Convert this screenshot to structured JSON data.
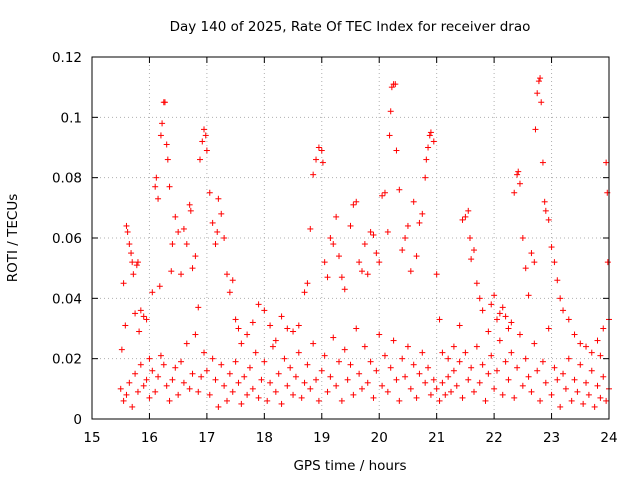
{
  "chart_data": {
    "type": "scatter",
    "title": "Day 140 of 2025, Rate Of TEC Index for receiver drao",
    "xlabel": "GPS time / hours",
    "ylabel": "ROTI / TECUs",
    "xlim": [
      15,
      24
    ],
    "ylim": [
      0,
      0.12
    ],
    "x_ticks": [
      "15",
      "16",
      "17",
      "18",
      "19",
      "20",
      "21",
      "22",
      "23",
      "24"
    ],
    "y_ticks": [
      "0",
      "0.02",
      "0.04",
      "0.06",
      "0.08",
      "0.1",
      "0.12"
    ],
    "grid": true,
    "marker": "plus",
    "series_color": "#ff0000",
    "points": [
      [
        15.5,
        0.01
      ],
      [
        15.52,
        0.023
      ],
      [
        15.55,
        0.045
      ],
      [
        15.58,
        0.031
      ],
      [
        15.6,
        0.064
      ],
      [
        15.62,
        0.062
      ],
      [
        15.65,
        0.058
      ],
      [
        15.68,
        0.055
      ],
      [
        15.7,
        0.052
      ],
      [
        15.72,
        0.048
      ],
      [
        15.75,
        0.035
      ],
      [
        15.78,
        0.051
      ],
      [
        15.8,
        0.052
      ],
      [
        15.82,
        0.029
      ],
      [
        15.85,
        0.036
      ],
      [
        15.9,
        0.034
      ],
      [
        15.95,
        0.033
      ],
      [
        16.0,
        0.02
      ],
      [
        16.05,
        0.042
      ],
      [
        16.1,
        0.077
      ],
      [
        16.12,
        0.08
      ],
      [
        16.15,
        0.073
      ],
      [
        16.18,
        0.044
      ],
      [
        16.2,
        0.094
      ],
      [
        16.22,
        0.098
      ],
      [
        16.25,
        0.105
      ],
      [
        16.27,
        0.105
      ],
      [
        16.3,
        0.091
      ],
      [
        16.32,
        0.086
      ],
      [
        16.35,
        0.077
      ],
      [
        16.38,
        0.049
      ],
      [
        16.4,
        0.058
      ],
      [
        16.45,
        0.067
      ],
      [
        16.5,
        0.062
      ],
      [
        16.55,
        0.048
      ],
      [
        16.6,
        0.063
      ],
      [
        16.65,
        0.058
      ],
      [
        16.7,
        0.071
      ],
      [
        16.72,
        0.069
      ],
      [
        16.75,
        0.05
      ],
      [
        16.8,
        0.054
      ],
      [
        16.85,
        0.037
      ],
      [
        16.88,
        0.086
      ],
      [
        16.92,
        0.092
      ],
      [
        16.95,
        0.096
      ],
      [
        16.98,
        0.094
      ],
      [
        17.0,
        0.089
      ],
      [
        17.05,
        0.075
      ],
      [
        17.1,
        0.065
      ],
      [
        17.15,
        0.058
      ],
      [
        17.18,
        0.062
      ],
      [
        17.2,
        0.073
      ],
      [
        17.25,
        0.068
      ],
      [
        17.3,
        0.06
      ],
      [
        17.35,
        0.048
      ],
      [
        17.4,
        0.042
      ],
      [
        17.45,
        0.046
      ],
      [
        17.5,
        0.033
      ],
      [
        17.55,
        0.03
      ],
      [
        17.6,
        0.025
      ],
      [
        17.7,
        0.028
      ],
      [
        17.8,
        0.032
      ],
      [
        17.9,
        0.038
      ],
      [
        18.0,
        0.036
      ],
      [
        18.1,
        0.031
      ],
      [
        18.2,
        0.026
      ],
      [
        18.3,
        0.034
      ],
      [
        18.4,
        0.03
      ],
      [
        18.5,
        0.029
      ],
      [
        18.6,
        0.031
      ],
      [
        18.7,
        0.042
      ],
      [
        18.75,
        0.045
      ],
      [
        18.8,
        0.063
      ],
      [
        18.85,
        0.081
      ],
      [
        18.9,
        0.086
      ],
      [
        18.95,
        0.09
      ],
      [
        19.0,
        0.089
      ],
      [
        19.02,
        0.085
      ],
      [
        19.05,
        0.052
      ],
      [
        19.1,
        0.047
      ],
      [
        19.15,
        0.06
      ],
      [
        19.2,
        0.058
      ],
      [
        19.25,
        0.067
      ],
      [
        19.3,
        0.054
      ],
      [
        19.35,
        0.047
      ],
      [
        19.4,
        0.043
      ],
      [
        19.5,
        0.064
      ],
      [
        19.55,
        0.071
      ],
      [
        19.6,
        0.072
      ],
      [
        19.65,
        0.052
      ],
      [
        19.7,
        0.049
      ],
      [
        19.75,
        0.058
      ],
      [
        19.8,
        0.048
      ],
      [
        19.85,
        0.062
      ],
      [
        19.9,
        0.061
      ],
      [
        19.95,
        0.055
      ],
      [
        20.0,
        0.052
      ],
      [
        20.05,
        0.074
      ],
      [
        20.1,
        0.075
      ],
      [
        20.15,
        0.062
      ],
      [
        20.18,
        0.094
      ],
      [
        20.2,
        0.102
      ],
      [
        20.22,
        0.11
      ],
      [
        20.25,
        0.111
      ],
      [
        20.28,
        0.111
      ],
      [
        20.3,
        0.089
      ],
      [
        20.35,
        0.076
      ],
      [
        20.4,
        0.056
      ],
      [
        20.45,
        0.06
      ],
      [
        20.5,
        0.064
      ],
      [
        20.55,
        0.049
      ],
      [
        20.6,
        0.072
      ],
      [
        20.65,
        0.054
      ],
      [
        20.7,
        0.065
      ],
      [
        20.75,
        0.068
      ],
      [
        20.8,
        0.08
      ],
      [
        20.82,
        0.086
      ],
      [
        20.85,
        0.09
      ],
      [
        20.88,
        0.094
      ],
      [
        20.9,
        0.095
      ],
      [
        20.95,
        0.092
      ],
      [
        21.0,
        0.048
      ],
      [
        21.05,
        0.033
      ],
      [
        21.1,
        0.022
      ],
      [
        21.2,
        0.02
      ],
      [
        21.3,
        0.024
      ],
      [
        21.4,
        0.031
      ],
      [
        21.45,
        0.066
      ],
      [
        21.5,
        0.067
      ],
      [
        21.55,
        0.069
      ],
      [
        21.58,
        0.06
      ],
      [
        21.6,
        0.053
      ],
      [
        21.65,
        0.056
      ],
      [
        21.7,
        0.045
      ],
      [
        21.75,
        0.04
      ],
      [
        21.8,
        0.036
      ],
      [
        21.9,
        0.029
      ],
      [
        21.95,
        0.038
      ],
      [
        22.0,
        0.041
      ],
      [
        22.05,
        0.033
      ],
      [
        22.1,
        0.035
      ],
      [
        22.15,
        0.037
      ],
      [
        22.2,
        0.034
      ],
      [
        22.25,
        0.03
      ],
      [
        22.3,
        0.032
      ],
      [
        22.35,
        0.075
      ],
      [
        22.4,
        0.081
      ],
      [
        22.42,
        0.082
      ],
      [
        22.45,
        0.078
      ],
      [
        22.5,
        0.06
      ],
      [
        22.55,
        0.05
      ],
      [
        22.6,
        0.041
      ],
      [
        22.65,
        0.055
      ],
      [
        22.7,
        0.052
      ],
      [
        22.72,
        0.096
      ],
      [
        22.75,
        0.108
      ],
      [
        22.78,
        0.112
      ],
      [
        22.8,
        0.113
      ],
      [
        22.82,
        0.105
      ],
      [
        22.85,
        0.085
      ],
      [
        22.88,
        0.072
      ],
      [
        22.9,
        0.069
      ],
      [
        22.95,
        0.066
      ],
      [
        23.0,
        0.057
      ],
      [
        23.05,
        0.052
      ],
      [
        23.1,
        0.046
      ],
      [
        23.15,
        0.04
      ],
      [
        23.2,
        0.036
      ],
      [
        23.3,
        0.033
      ],
      [
        23.4,
        0.028
      ],
      [
        23.5,
        0.025
      ],
      [
        23.6,
        0.024
      ],
      [
        23.7,
        0.022
      ],
      [
        23.8,
        0.026
      ],
      [
        23.85,
        0.021
      ],
      [
        23.9,
        0.03
      ],
      [
        23.95,
        0.085
      ],
      [
        23.97,
        0.075
      ],
      [
        23.98,
        0.052
      ],
      [
        24.0,
        0.033
      ],
      [
        15.55,
        0.006
      ],
      [
        15.6,
        0.008
      ],
      [
        15.65,
        0.012
      ],
      [
        15.7,
        0.004
      ],
      [
        15.75,
        0.015
      ],
      [
        15.8,
        0.009
      ],
      [
        15.85,
        0.018
      ],
      [
        15.9,
        0.011
      ],
      [
        15.95,
        0.013
      ],
      [
        16.0,
        0.007
      ],
      [
        16.05,
        0.016
      ],
      [
        16.1,
        0.009
      ],
      [
        16.15,
        0.014
      ],
      [
        16.2,
        0.021
      ],
      [
        16.25,
        0.018
      ],
      [
        16.3,
        0.011
      ],
      [
        16.35,
        0.006
      ],
      [
        16.4,
        0.013
      ],
      [
        16.45,
        0.017
      ],
      [
        16.5,
        0.008
      ],
      [
        16.55,
        0.019
      ],
      [
        16.6,
        0.012
      ],
      [
        16.65,
        0.025
      ],
      [
        16.7,
        0.01
      ],
      [
        16.75,
        0.015
      ],
      [
        16.8,
        0.028
      ],
      [
        16.85,
        0.009
      ],
      [
        16.9,
        0.014
      ],
      [
        16.95,
        0.022
      ],
      [
        17.0,
        0.016
      ],
      [
        17.05,
        0.008
      ],
      [
        17.1,
        0.02
      ],
      [
        17.15,
        0.013
      ],
      [
        17.2,
        0.004
      ],
      [
        17.25,
        0.018
      ],
      [
        17.3,
        0.011
      ],
      [
        17.35,
        0.006
      ],
      [
        17.4,
        0.015
      ],
      [
        17.45,
        0.009
      ],
      [
        17.5,
        0.019
      ],
      [
        17.55,
        0.012
      ],
      [
        17.6,
        0.005
      ],
      [
        17.65,
        0.014
      ],
      [
        17.7,
        0.008
      ],
      [
        17.75,
        0.017
      ],
      [
        17.8,
        0.01
      ],
      [
        17.85,
        0.022
      ],
      [
        17.9,
        0.007
      ],
      [
        17.95,
        0.013
      ],
      [
        18.0,
        0.019
      ],
      [
        18.05,
        0.006
      ],
      [
        18.1,
        0.012
      ],
      [
        18.15,
        0.024
      ],
      [
        18.2,
        0.009
      ],
      [
        18.25,
        0.015
      ],
      [
        18.3,
        0.005
      ],
      [
        18.35,
        0.02
      ],
      [
        18.4,
        0.011
      ],
      [
        18.45,
        0.017
      ],
      [
        18.5,
        0.008
      ],
      [
        18.55,
        0.014
      ],
      [
        18.6,
        0.022
      ],
      [
        18.65,
        0.007
      ],
      [
        18.7,
        0.012
      ],
      [
        18.75,
        0.018
      ],
      [
        18.8,
        0.01
      ],
      [
        18.85,
        0.025
      ],
      [
        18.9,
        0.013
      ],
      [
        18.95,
        0.006
      ],
      [
        19.0,
        0.016
      ],
      [
        19.05,
        0.021
      ],
      [
        19.1,
        0.009
      ],
      [
        19.15,
        0.014
      ],
      [
        19.2,
        0.027
      ],
      [
        19.25,
        0.011
      ],
      [
        19.3,
        0.019
      ],
      [
        19.35,
        0.006
      ],
      [
        19.4,
        0.023
      ],
      [
        19.45,
        0.013
      ],
      [
        19.5,
        0.018
      ],
      [
        19.55,
        0.008
      ],
      [
        19.6,
        0.03
      ],
      [
        19.65,
        0.015
      ],
      [
        19.7,
        0.01
      ],
      [
        19.75,
        0.024
      ],
      [
        19.8,
        0.012
      ],
      [
        19.85,
        0.019
      ],
      [
        19.9,
        0.007
      ],
      [
        19.95,
        0.016
      ],
      [
        20.0,
        0.028
      ],
      [
        20.05,
        0.011
      ],
      [
        20.1,
        0.021
      ],
      [
        20.15,
        0.009
      ],
      [
        20.2,
        0.017
      ],
      [
        20.25,
        0.026
      ],
      [
        20.3,
        0.013
      ],
      [
        20.35,
        0.006
      ],
      [
        20.4,
        0.02
      ],
      [
        20.45,
        0.014
      ],
      [
        20.5,
        0.024
      ],
      [
        20.55,
        0.01
      ],
      [
        20.6,
        0.018
      ],
      [
        20.65,
        0.007
      ],
      [
        20.7,
        0.015
      ],
      [
        20.75,
        0.022
      ],
      [
        20.8,
        0.012
      ],
      [
        20.85,
        0.017
      ],
      [
        20.9,
        0.008
      ],
      [
        20.95,
        0.013
      ],
      [
        21.0,
        0.01
      ],
      [
        21.05,
        0.006
      ],
      [
        21.1,
        0.012
      ],
      [
        21.15,
        0.008
      ],
      [
        21.2,
        0.014
      ],
      [
        21.25,
        0.009
      ],
      [
        21.3,
        0.016
      ],
      [
        21.35,
        0.011
      ],
      [
        21.4,
        0.019
      ],
      [
        21.45,
        0.007
      ],
      [
        21.5,
        0.022
      ],
      [
        21.55,
        0.013
      ],
      [
        21.6,
        0.017
      ],
      [
        21.65,
        0.009
      ],
      [
        21.7,
        0.024
      ],
      [
        21.75,
        0.012
      ],
      [
        21.8,
        0.018
      ],
      [
        21.85,
        0.006
      ],
      [
        21.9,
        0.015
      ],
      [
        21.95,
        0.021
      ],
      [
        22.0,
        0.01
      ],
      [
        22.05,
        0.016
      ],
      [
        22.1,
        0.026
      ],
      [
        22.15,
        0.008
      ],
      [
        22.2,
        0.019
      ],
      [
        22.25,
        0.013
      ],
      [
        22.3,
        0.022
      ],
      [
        22.35,
        0.007
      ],
      [
        22.4,
        0.017
      ],
      [
        22.45,
        0.028
      ],
      [
        22.5,
        0.011
      ],
      [
        22.55,
        0.02
      ],
      [
        22.6,
        0.014
      ],
      [
        22.65,
        0.009
      ],
      [
        22.7,
        0.025
      ],
      [
        22.75,
        0.016
      ],
      [
        22.8,
        0.006
      ],
      [
        22.85,
        0.019
      ],
      [
        22.9,
        0.012
      ],
      [
        22.95,
        0.03
      ],
      [
        23.0,
        0.008
      ],
      [
        23.05,
        0.017
      ],
      [
        23.1,
        0.013
      ],
      [
        23.15,
        0.004
      ],
      [
        23.2,
        0.015
      ],
      [
        23.25,
        0.01
      ],
      [
        23.3,
        0.02
      ],
      [
        23.35,
        0.006
      ],
      [
        23.4,
        0.013
      ],
      [
        23.45,
        0.009
      ],
      [
        23.5,
        0.018
      ],
      [
        23.55,
        0.005
      ],
      [
        23.6,
        0.012
      ],
      [
        23.65,
        0.008
      ],
      [
        23.7,
        0.016
      ],
      [
        23.75,
        0.004
      ],
      [
        23.8,
        0.011
      ],
      [
        23.85,
        0.007
      ],
      [
        23.9,
        0.014
      ],
      [
        23.95,
        0.006
      ],
      [
        24.0,
        0.01
      ]
    ]
  }
}
